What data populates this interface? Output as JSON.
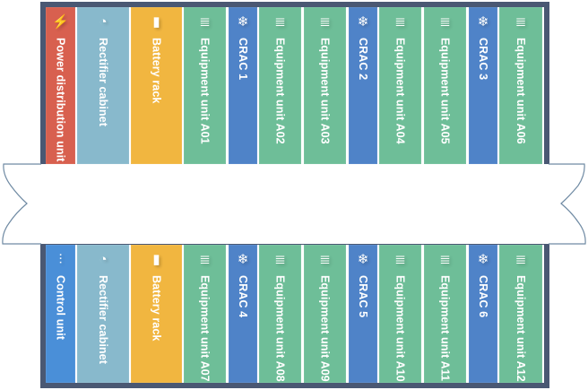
{
  "colors": {
    "power": "#d8604f",
    "rectifier": "#88b9cc",
    "battery": "#f1b640",
    "equipment": "#6ebe98",
    "crac": "#4f83c8",
    "control": "#4a8fd8",
    "frame": "#4a5873"
  },
  "top_row": [
    {
      "label": "Power distribution unit",
      "type": "power",
      "icon": "lightning-icon"
    },
    {
      "label": "Rectifier cabinet",
      "type": "rectifier",
      "icon": "gauge-icon"
    },
    {
      "label": "Battery rack",
      "type": "battery",
      "icon": "battery-icon"
    },
    {
      "label": "Equipment unit A01",
      "type": "equipment",
      "icon": "database-icon"
    },
    {
      "label": "CRAC 1",
      "type": "crac",
      "icon": "snowflake-icon"
    },
    {
      "label": "Equipment unit A02",
      "type": "equipment",
      "icon": "database-icon"
    },
    {
      "label": "Equipment unit A03",
      "type": "equipment",
      "icon": "database-icon"
    },
    {
      "label": "CRAC 2",
      "type": "crac",
      "icon": "snowflake-icon"
    },
    {
      "label": "Equipment unit A04",
      "type": "equipment",
      "icon": "database-icon"
    },
    {
      "label": "Equipment unit A05",
      "type": "equipment",
      "icon": "database-icon"
    },
    {
      "label": "CRAC 3",
      "type": "crac",
      "icon": "snowflake-icon"
    },
    {
      "label": "Equipment unit A06",
      "type": "equipment",
      "icon": "database-icon"
    }
  ],
  "bottom_row": [
    {
      "label": "Control unit",
      "type": "control",
      "icon": "sliders-icon"
    },
    {
      "label": "Rectifier cabinet",
      "type": "rectifier",
      "icon": "gauge-icon"
    },
    {
      "label": "Battery rack",
      "type": "battery",
      "icon": "battery-icon"
    },
    {
      "label": "Equipment unit A07",
      "type": "equipment",
      "icon": "database-icon"
    },
    {
      "label": "CRAC 4",
      "type": "crac",
      "icon": "snowflake-icon"
    },
    {
      "label": "Equipment unit A08",
      "type": "equipment",
      "icon": "database-icon"
    },
    {
      "label": "Equipment unit A09",
      "type": "equipment",
      "icon": "database-icon"
    },
    {
      "label": "CRAC 5",
      "type": "crac",
      "icon": "snowflake-icon"
    },
    {
      "label": "Equipment unit A10",
      "type": "equipment",
      "icon": "database-icon"
    },
    {
      "label": "Equipment unit A11",
      "type": "equipment",
      "icon": "database-icon"
    },
    {
      "label": "CRAC 6",
      "type": "crac",
      "icon": "snowflake-icon"
    },
    {
      "label": "Equipment unit A12",
      "type": "equipment",
      "icon": "database-icon"
    }
  ]
}
